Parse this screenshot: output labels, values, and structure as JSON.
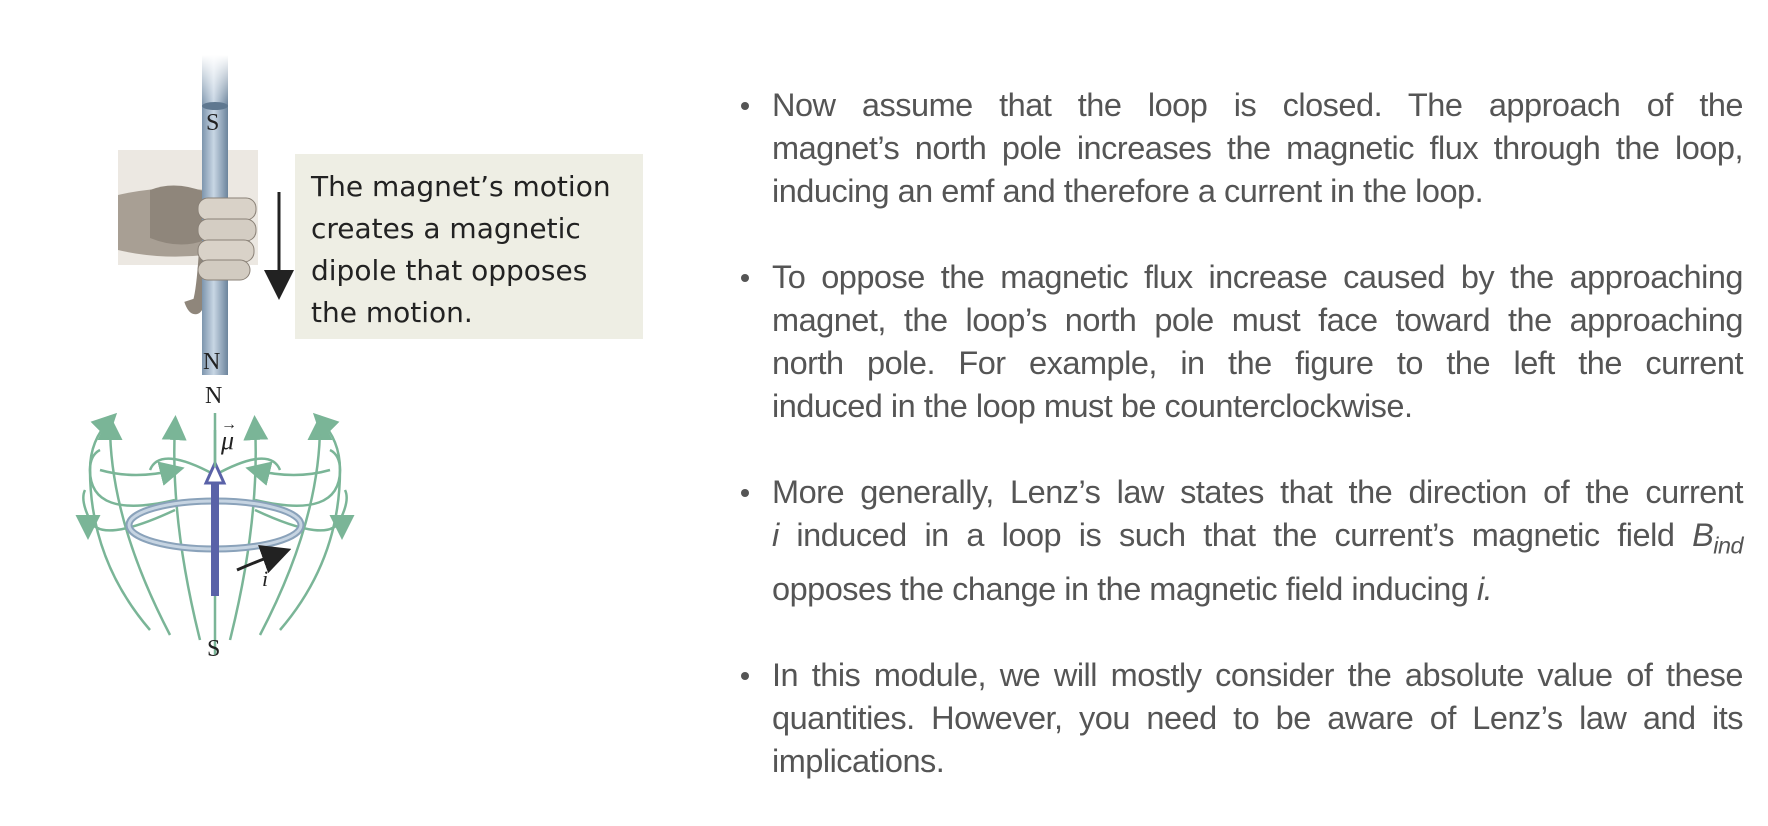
{
  "figure": {
    "callout_lines": [
      "The magnet’s motion",
      "creates a magnetic",
      "dipole that opposes",
      "the motion."
    ],
    "magnet_top_label": "S",
    "magnet_bottom_label": "N",
    "dipole_north_label": "N",
    "dipole_south_label": "S",
    "mu_label": "μ",
    "current_label": "i"
  },
  "bullets": [
    {
      "lines": [
        "Now assume that the loop is closed. The approach of the",
        "magnet’s north pole increases the magnetic flux through the loop,",
        "inducing an emf and therefore a current in the loop."
      ]
    },
    {
      "lines": [
        "To oppose the magnetic flux increase caused by the approaching",
        "magnet, the loop’s north pole must face toward the approaching",
        "north pole. For example, in the figure to the left the current",
        "induced in the loop must be counterclockwise."
      ]
    },
    {
      "line1": "More generally, Lenz’s law states that the direction of the current",
      "line2_var": "i",
      "line2_text": " induced in a loop is such that the current’s magnetic field ",
      "line2_B": "B",
      "line2_sub": "ind",
      "line3_text": "opposes the change in the magnetic field inducing ",
      "line3_var": "i."
    },
    {
      "lines": [
        "In this module, we will mostly consider the absolute value of these",
        "quantities. However, you need to be aware of Lenz’s law and its",
        "implications."
      ]
    }
  ]
}
